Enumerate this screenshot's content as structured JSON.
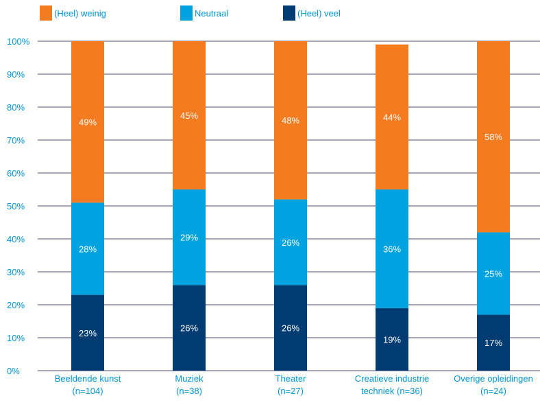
{
  "colors": {
    "weinig": "#f47b20",
    "neutraal": "#00a3e0",
    "veel": "#003c71",
    "axis_text": "#0096d6",
    "grid": "#4a4f7a"
  },
  "legend": [
    {
      "key": "weinig",
      "label": "(Heel) weinig"
    },
    {
      "key": "neutraal",
      "label": "Neutraal"
    },
    {
      "key": "veel",
      "label": "(Heel) veel"
    }
  ],
  "chart_data": {
    "type": "bar",
    "stacked": true,
    "categories": [
      [
        "Beeldende kunst",
        "(n=104)"
      ],
      [
        "Muziek",
        "(n=38)"
      ],
      [
        "Theater",
        "(n=27)"
      ],
      [
        "Creatieve industrie",
        "techniek (n=36)"
      ],
      [
        "Overige opleidingen",
        "(n=24)"
      ]
    ],
    "series": [
      {
        "key": "veel",
        "name": "(Heel) veel",
        "values": [
          23,
          26,
          26,
          19,
          17
        ],
        "labels": [
          "23%",
          "26%",
          "26%",
          "19%",
          "17%"
        ]
      },
      {
        "key": "neutraal",
        "name": "Neutraal",
        "values": [
          28,
          29,
          26,
          36,
          25
        ],
        "labels": [
          "28%",
          "29%",
          "26%",
          "36%",
          "25%"
        ]
      },
      {
        "key": "weinig",
        "name": "(Heel) weinig",
        "values": [
          49,
          45,
          48,
          44,
          58
        ],
        "labels": [
          "49%",
          "45%",
          "48%",
          "44%",
          "58%"
        ]
      }
    ],
    "ylim": [
      0,
      100
    ],
    "yticks": [
      "0%",
      "10%",
      "20%",
      "30%",
      "40%",
      "50%",
      "60%",
      "70%",
      "80%",
      "90%",
      "100%"
    ],
    "grid": true,
    "legend_position": "top"
  }
}
